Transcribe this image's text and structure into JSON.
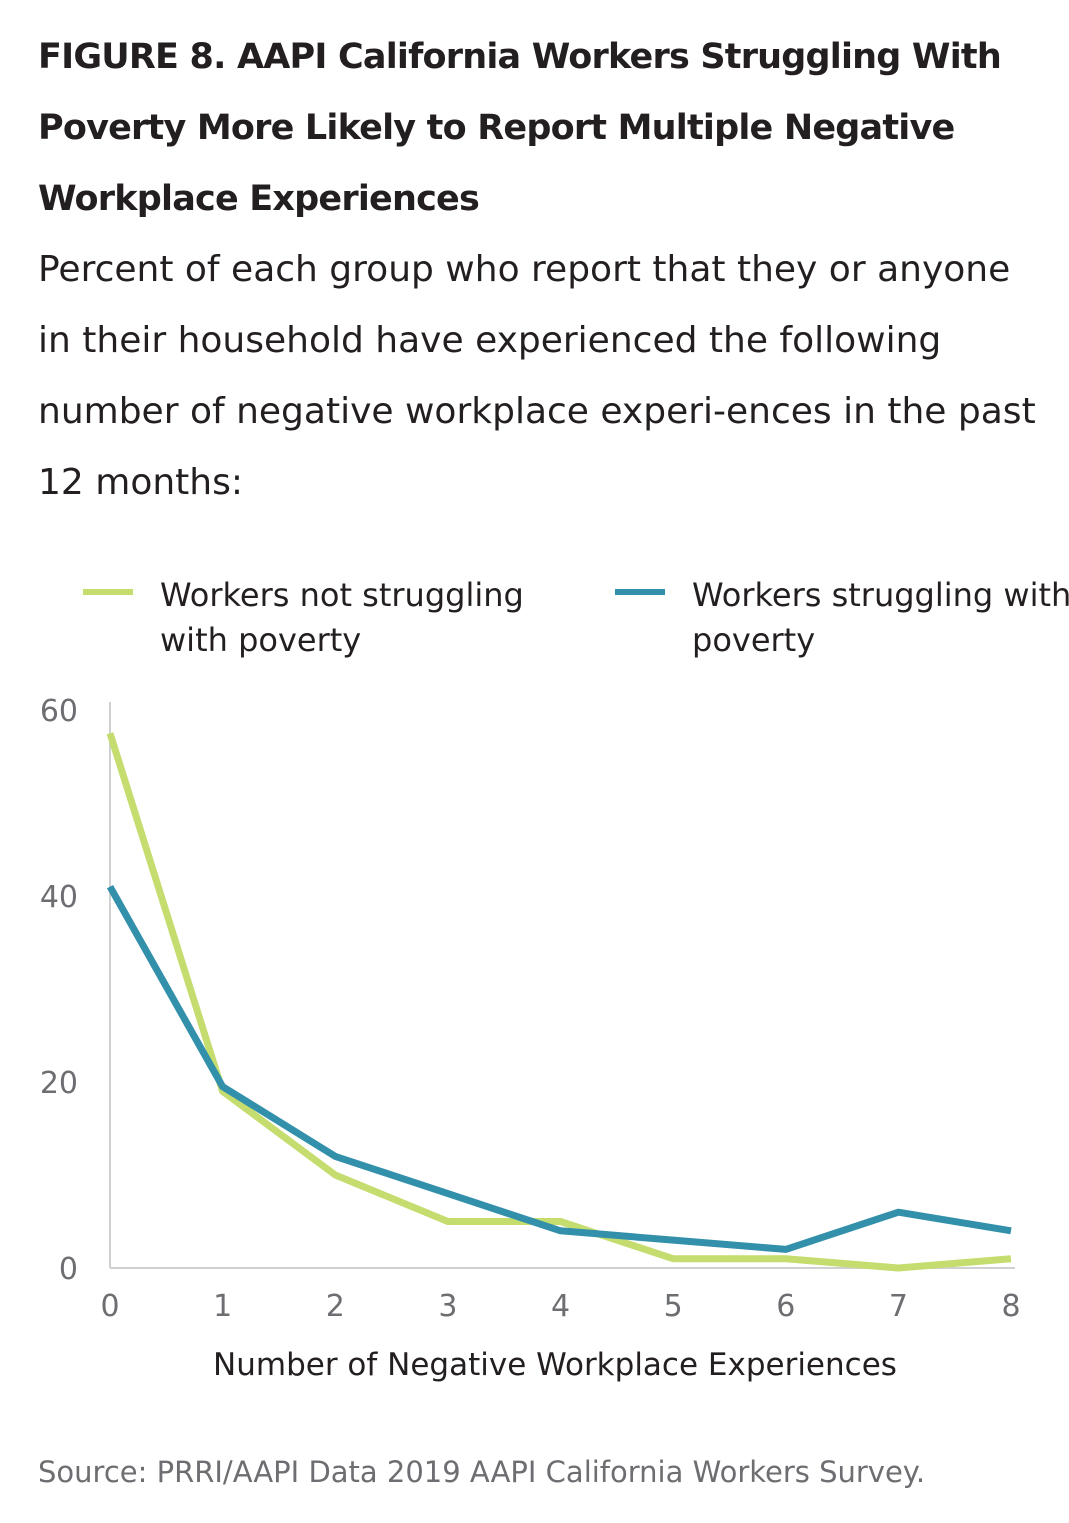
{
  "title": "FIGURE 8.  AAPI California Workers Struggling With Poverty More Likely to Report Multiple Negative Workplace Experiences",
  "subtitle": "Percent of each group who report that they or anyone in their household have experienced the following number of negative workplace experi-ences in the past 12 months:",
  "source": "Source: PRRI/AAPI Data 2019 AAPI California Workers Survey.",
  "colors": {
    "not_struggling": "#c5dc6e",
    "struggling": "#3390ab",
    "axis": "#cfd0d2",
    "tick_text": "#6d6e71"
  },
  "chart_data": {
    "type": "line",
    "xlabel": "Number of Negative Workplace Experiences",
    "ylabel": "",
    "x": [
      0,
      1,
      2,
      3,
      4,
      5,
      6,
      7,
      8
    ],
    "xlim": [
      0,
      8
    ],
    "ylim": [
      0,
      60
    ],
    "yticks": [
      0,
      20,
      40,
      60
    ],
    "grid": false,
    "legend_position": "top",
    "series": [
      {
        "name": "Workers not struggling with poverty",
        "key": "not_struggling",
        "values": [
          57.5,
          19,
          10,
          5,
          5,
          1,
          1,
          0,
          1
        ]
      },
      {
        "name": "Workers struggling with poverty",
        "key": "struggling",
        "values": [
          41,
          19.5,
          12,
          8,
          4,
          3,
          2,
          6,
          4
        ]
      }
    ]
  }
}
